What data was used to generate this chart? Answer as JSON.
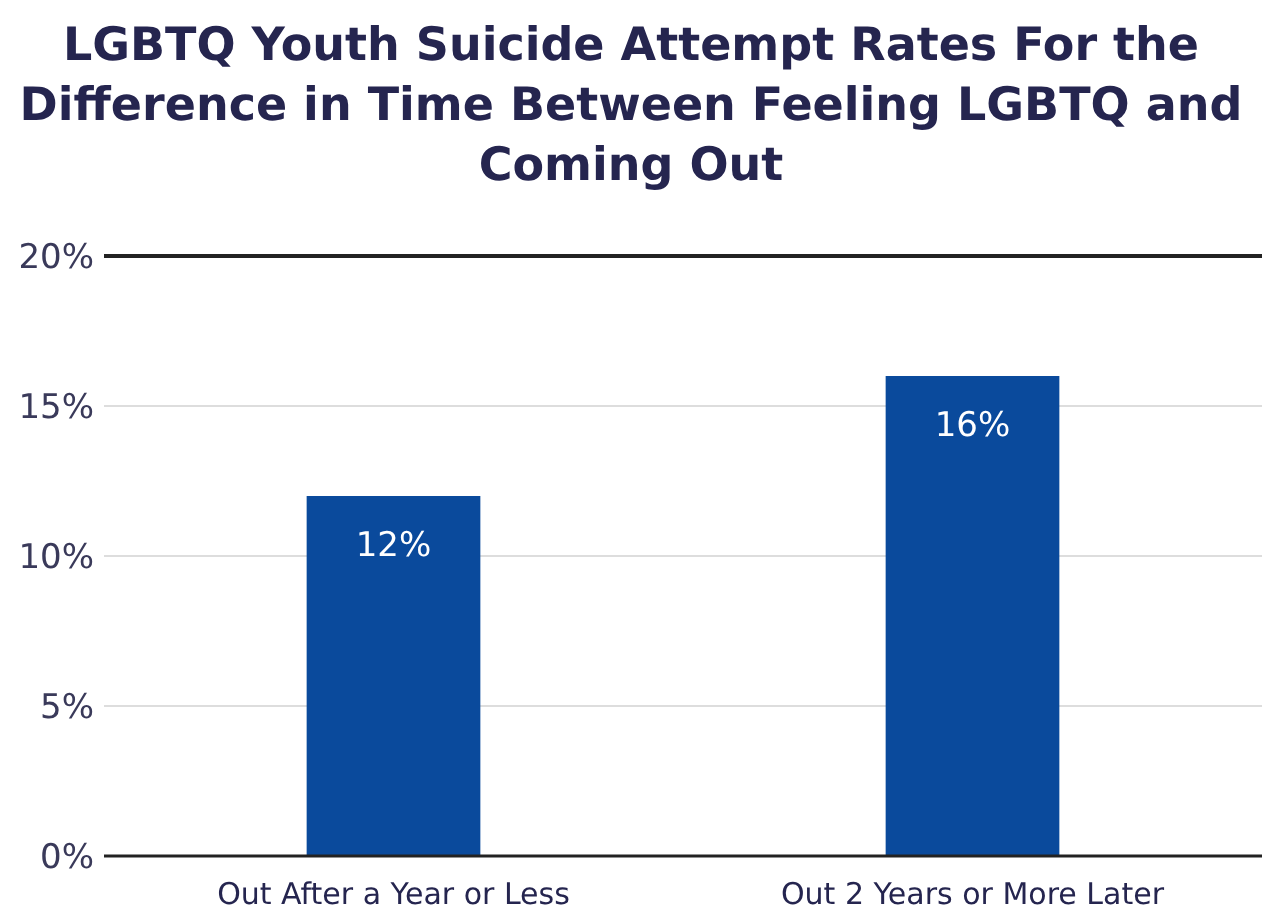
{
  "chart_data": {
    "type": "bar",
    "title": "LGBTQ Youth Suicide Attempt Rates For the Difference in Time Between Feeling LGBTQ and Coming Out",
    "categories": [
      "Out After a Year or Less",
      "Out 2 Years or More Later"
    ],
    "values": [
      12,
      16
    ],
    "color": "#0a4a9c",
    "value_labels": [
      "12%",
      "16%"
    ],
    "ylim": [
      0,
      20
    ],
    "yticks": [
      {
        "value": 0,
        "label": "0%"
      },
      {
        "value": 5,
        "label": "5%"
      },
      {
        "value": 10,
        "label": "10%"
      },
      {
        "value": 15,
        "label": "15%"
      },
      {
        "value": 20,
        "label": "20%"
      }
    ],
    "grid": "y"
  }
}
